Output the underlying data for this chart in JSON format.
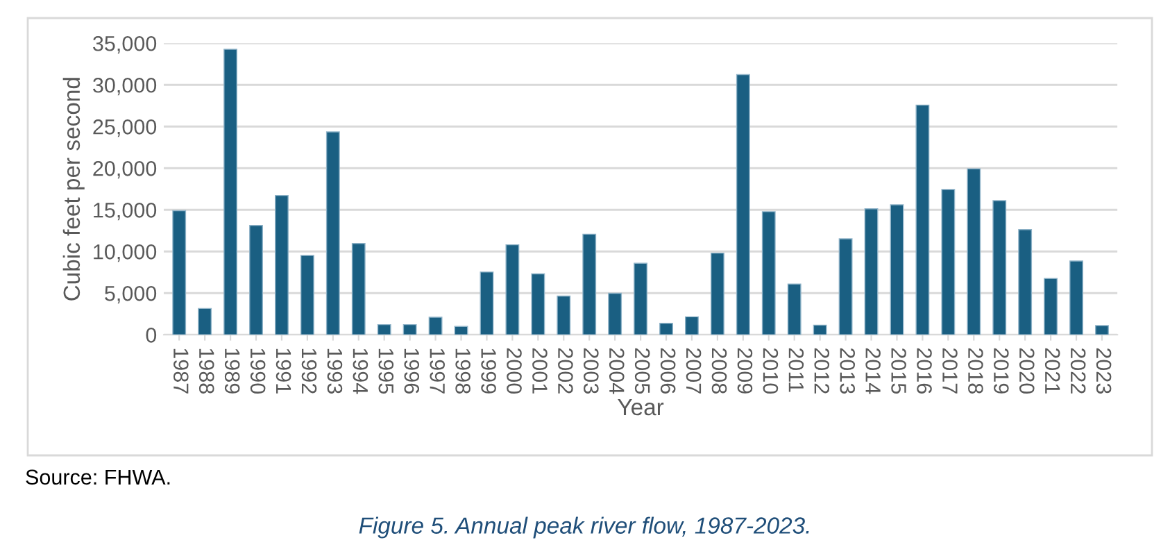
{
  "chart_data": {
    "type": "bar",
    "title": "Figure 5. Annual peak river flow, 1987-2023.",
    "xlabel": "Year",
    "ylabel": "Cubic feet per second",
    "annotations": [
      "Source: FHWA."
    ],
    "categories": [
      "1987",
      "1988",
      "1989",
      "1990",
      "1991",
      "1992",
      "1993",
      "1994",
      "1995",
      "1996",
      "1997",
      "1998",
      "1999",
      "2000",
      "2001",
      "2002",
      "2003",
      "2004",
      "2005",
      "2006",
      "2007",
      "2008",
      "2009",
      "2010",
      "2011",
      "2012",
      "2013",
      "2014",
      "2015",
      "2016",
      "2017",
      "2018",
      "2019",
      "2020",
      "2021",
      "2022",
      "2023"
    ],
    "values": [
      14900,
      3160,
      34270,
      13120,
      16720,
      9520,
      24360,
      10960,
      1220,
      1220,
      2100,
      1000,
      7530,
      10800,
      7310,
      4650,
      12070,
      4980,
      8580,
      1380,
      2160,
      9800,
      31230,
      14780,
      6090,
      1160,
      11520,
      15120,
      15610,
      27570,
      17440,
      19930,
      16110,
      12620,
      6760,
      8860,
      1110
    ],
    "color": "#1a5f82",
    "ylim": [
      0,
      35000
    ],
    "yticks": [
      {
        "value": 0,
        "label": "0"
      },
      {
        "value": 5000,
        "label": "5,000"
      },
      {
        "value": 10000,
        "label": "10,000"
      },
      {
        "value": 15000,
        "label": "15,000"
      },
      {
        "value": 20000,
        "label": "20,000"
      },
      {
        "value": 25000,
        "label": "25,000"
      },
      {
        "value": 30000,
        "label": "30,000"
      },
      {
        "value": 35000,
        "label": "35,000"
      }
    ],
    "grid": "y",
    "legend": false
  }
}
